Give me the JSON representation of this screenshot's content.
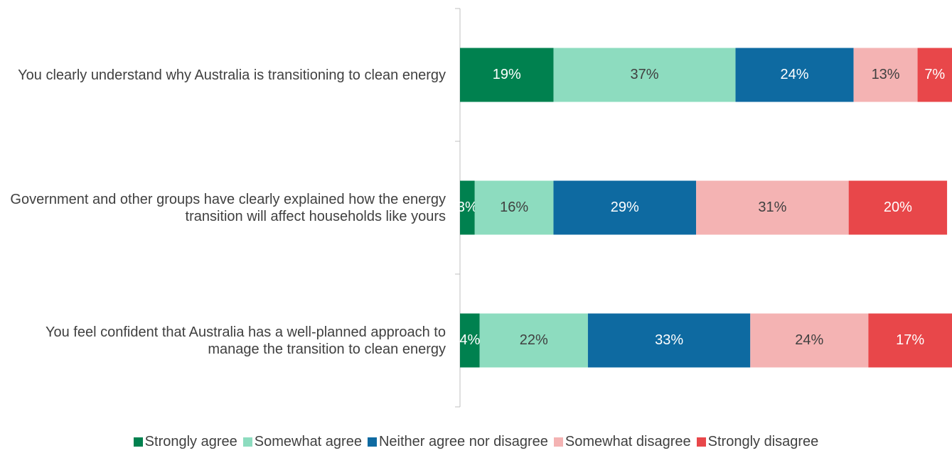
{
  "chart_data": {
    "type": "stacked_barh",
    "categories": [
      "You clearly understand why Australia is transitioning to clean energy",
      "Government and other groups have clearly explained how the energy transition will affect households like yours",
      "You feel confident that Australia has a well-planned approach to manage the transition to clean energy"
    ],
    "series": [
      {
        "name": "Strongly agree",
        "color": "#00814f",
        "values": [
          19,
          3,
          4
        ],
        "value_labels": [
          "19%",
          "3%",
          "4%"
        ]
      },
      {
        "name": "Somewhat agree",
        "color": "#8ddcbf",
        "values": [
          37,
          16,
          22
        ],
        "value_labels": [
          "37%",
          "16%",
          "22%"
        ]
      },
      {
        "name": "Neither agree nor disagree",
        "color": "#0e6aa1",
        "values": [
          24,
          29,
          33
        ],
        "value_labels": [
          "24%",
          "29%",
          "33%"
        ]
      },
      {
        "name": "Somewhat disagree",
        "color": "#f4b3b3",
        "values": [
          13,
          31,
          24
        ],
        "value_labels": [
          "13%",
          "31%",
          "24%"
        ]
      },
      {
        "name": "Strongly disagree",
        "color": "#e8474a",
        "values": [
          7,
          20,
          17
        ],
        "value_labels": [
          "7%",
          "20%",
          "17%"
        ]
      }
    ],
    "xlim": [
      0,
      100
    ],
    "legend": "bottom"
  }
}
